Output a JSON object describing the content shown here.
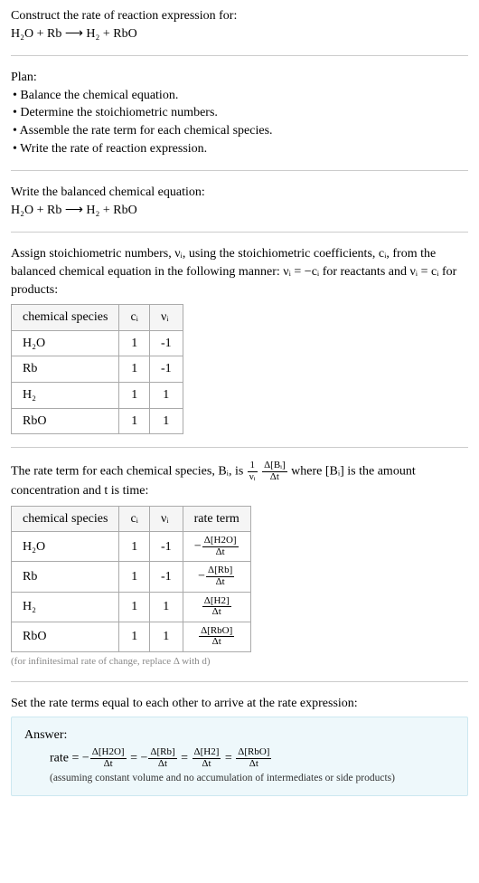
{
  "intro": {
    "line1": "Construct the rate of reaction expression for:",
    "equation": "H₂O + Rb ⟶ H₂ + RbO"
  },
  "plan": {
    "heading": "Plan:",
    "items": [
      "Balance the chemical equation.",
      "Determine the stoichiometric numbers.",
      "Assemble the rate term for each chemical species.",
      "Write the rate of reaction expression."
    ]
  },
  "balanced": {
    "heading": "Write the balanced chemical equation:",
    "equation": "H₂O + Rb ⟶ H₂ + RbO"
  },
  "stoich_text": {
    "part1": "Assign stoichiometric numbers, νᵢ, using the stoichiometric coefficients, cᵢ, from the balanced chemical equation in the following manner: νᵢ = −cᵢ for reactants and νᵢ = cᵢ for products:"
  },
  "stoich_table": {
    "columns": [
      "chemical species",
      "cᵢ",
      "νᵢ"
    ],
    "rows": [
      [
        "H₂O",
        "1",
        "-1"
      ],
      [
        "Rb",
        "1",
        "-1"
      ],
      [
        "H₂",
        "1",
        "1"
      ],
      [
        "RbO",
        "1",
        "1"
      ]
    ]
  },
  "rate_term_text": {
    "prefix": "The rate term for each chemical species, Bᵢ, is ",
    "frac1_num": "1",
    "frac1_den": "νᵢ",
    "frac2_num": "Δ[Bᵢ]",
    "frac2_den": "Δt",
    "mid": " where [Bᵢ] is the amount concentration and t is time:"
  },
  "rate_table": {
    "columns": [
      "chemical species",
      "cᵢ",
      "νᵢ",
      "rate term"
    ],
    "rows": [
      {
        "sp": "H₂O",
        "c": "1",
        "v": "-1",
        "neg": true,
        "num": "Δ[H2O]",
        "den": "Δt"
      },
      {
        "sp": "Rb",
        "c": "1",
        "v": "-1",
        "neg": true,
        "num": "Δ[Rb]",
        "den": "Δt"
      },
      {
        "sp": "H₂",
        "c": "1",
        "v": "1",
        "neg": false,
        "num": "Δ[H2]",
        "den": "Δt"
      },
      {
        "sp": "RbO",
        "c": "1",
        "v": "1",
        "neg": false,
        "num": "Δ[RbO]",
        "den": "Δt"
      }
    ],
    "caption": "(for infinitesimal rate of change, replace Δ with d)"
  },
  "final_text": "Set the rate terms equal to each other to arrive at the rate expression:",
  "answer": {
    "label": "Answer:",
    "prefix": "rate = ",
    "terms": [
      {
        "neg": true,
        "num": "Δ[H2O]",
        "den": "Δt"
      },
      {
        "neg": true,
        "num": "Δ[Rb]",
        "den": "Δt"
      },
      {
        "neg": false,
        "num": "Δ[H2]",
        "den": "Δt"
      },
      {
        "neg": false,
        "num": "Δ[RbO]",
        "den": "Δt"
      }
    ],
    "note": "(assuming constant volume and no accumulation of intermediates or side products)"
  }
}
